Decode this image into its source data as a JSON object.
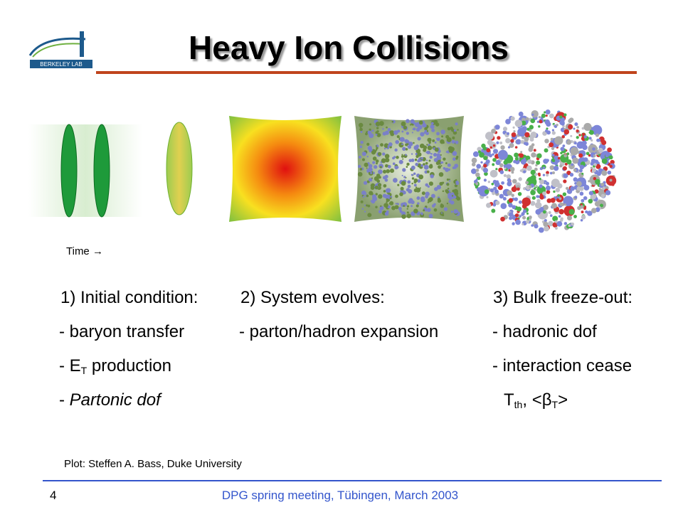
{
  "header": {
    "title": "Heavy Ion Collisions",
    "logo": "BERKELEY LAB"
  },
  "time_label": "Time →",
  "columns": [
    {
      "heading": "1) Initial condition:",
      "items": [
        [
          "- baryon transfer"
        ],
        [
          "- E",
          "T",
          " production"
        ],
        [
          "- ",
          "Partonic dof"
        ]
      ]
    },
    {
      "heading": "2) System evolves:",
      "items": [
        [
          "- parton/hadron expansion"
        ]
      ]
    },
    {
      "heading": "3) Bulk freeze-out:",
      "items": [
        [
          "- hadronic dof"
        ],
        [
          "- interaction cease"
        ],
        [
          "T",
          "th",
          ", <",
          "β",
          "T",
          ">"
        ]
      ]
    }
  ],
  "credit": "Plot: Steffen A. Bass, Duke University",
  "footer": {
    "page": "4",
    "text": "DPG spring meeting, Tübingen, March 2003"
  }
}
